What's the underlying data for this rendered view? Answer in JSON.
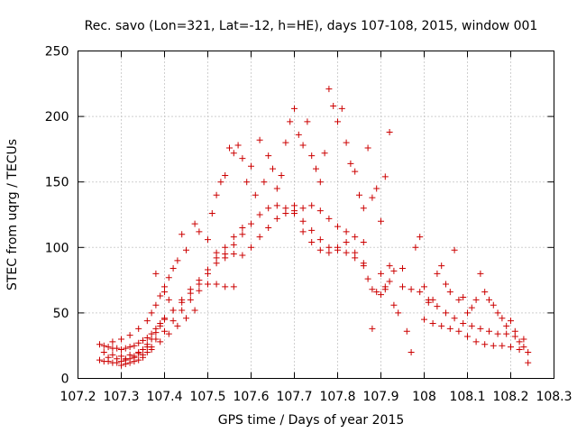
{
  "chart_data": {
    "type": "scatter",
    "title": "Rec. savo (Lon=321, Lat=-12, h=HE), days 107-108, 2015, window 001",
    "xlabel": "GPS time / Days of year 2015",
    "ylabel": "STEC from uqrg / TECUs",
    "xlim": [
      107.2,
      108.3
    ],
    "ylim": [
      0,
      250
    ],
    "x_ticks": [
      107.2,
      107.3,
      107.4,
      107.5,
      107.6,
      107.7,
      107.8,
      107.9,
      108,
      108.1,
      108.2,
      108.3
    ],
    "x_tick_labels": [
      "107.2",
      "107.3",
      "107.4",
      "107.5",
      "107.6",
      "107.7",
      "107.8",
      "107.9",
      "108",
      "108.1",
      "108.2",
      "108.3"
    ],
    "y_ticks": [
      0,
      50,
      100,
      150,
      200,
      250
    ],
    "y_tick_labels": [
      "0",
      "50",
      "100",
      "150",
      "200",
      "250"
    ],
    "grid": true,
    "marker": "plus",
    "color": "#cc0000",
    "series": [
      {
        "points": [
          [
            107.25,
            26
          ],
          [
            107.26,
            25
          ],
          [
            107.27,
            24
          ],
          [
            107.28,
            23
          ],
          [
            107.29,
            23
          ],
          [
            107.3,
            22
          ],
          [
            107.31,
            23
          ],
          [
            107.32,
            24
          ],
          [
            107.33,
            25
          ],
          [
            107.34,
            27
          ],
          [
            107.35,
            29
          ],
          [
            107.36,
            31
          ],
          [
            107.37,
            34
          ],
          [
            107.38,
            38
          ],
          [
            107.39,
            42
          ],
          [
            107.4,
            46
          ],
          [
            107.42,
            52
          ],
          [
            107.44,
            58
          ],
          [
            107.46,
            65
          ],
          [
            107.48,
            72
          ],
          [
            107.5,
            80
          ],
          [
            107.52,
            88
          ],
          [
            107.54,
            95
          ],
          [
            107.56,
            102
          ],
          [
            107.58,
            110
          ],
          [
            107.6,
            118
          ],
          [
            107.62,
            125
          ],
          [
            107.64,
            130
          ],
          [
            107.66,
            132
          ],
          [
            107.68,
            130
          ],
          [
            107.7,
            126
          ],
          [
            107.72,
            120
          ],
          [
            107.74,
            113
          ],
          [
            107.76,
            106
          ],
          [
            107.78,
            100
          ],
          [
            107.8,
            98
          ],
          [
            107.82,
            96
          ],
          [
            107.84,
            92
          ],
          [
            107.86,
            88
          ],
          [
            107.25,
            14
          ],
          [
            107.26,
            13
          ],
          [
            107.27,
            13
          ],
          [
            107.28,
            12
          ],
          [
            107.29,
            12
          ],
          [
            107.3,
            13
          ],
          [
            107.31,
            14
          ],
          [
            107.32,
            15
          ],
          [
            107.33,
            17
          ],
          [
            107.34,
            19
          ],
          [
            107.35,
            22
          ],
          [
            107.36,
            26
          ],
          [
            107.37,
            30
          ],
          [
            107.38,
            35
          ],
          [
            107.39,
            40
          ],
          [
            107.4,
            45
          ],
          [
            107.42,
            52
          ],
          [
            107.44,
            60
          ],
          [
            107.46,
            68
          ],
          [
            107.48,
            75
          ],
          [
            107.5,
            83
          ],
          [
            107.52,
            92
          ],
          [
            107.54,
            100
          ],
          [
            107.56,
            108
          ],
          [
            107.58,
            115
          ],
          [
            107.26,
            20
          ],
          [
            107.28,
            18
          ],
          [
            107.3,
            17
          ],
          [
            107.32,
            18
          ],
          [
            107.34,
            20
          ],
          [
            107.36,
            24
          ],
          [
            107.38,
            30
          ],
          [
            107.4,
            36
          ],
          [
            107.42,
            44
          ],
          [
            107.44,
            52
          ],
          [
            107.46,
            60
          ],
          [
            107.48,
            67
          ],
          [
            107.5,
            72
          ],
          [
            107.52,
            72
          ],
          [
            107.54,
            70
          ],
          [
            107.56,
            70
          ],
          [
            107.27,
            16
          ],
          [
            107.29,
            15
          ],
          [
            107.31,
            15
          ],
          [
            107.33,
            16
          ],
          [
            107.35,
            18
          ],
          [
            107.37,
            22
          ],
          [
            107.39,
            28
          ],
          [
            107.41,
            34
          ],
          [
            107.43,
            40
          ],
          [
            107.45,
            46
          ],
          [
            107.47,
            52
          ],
          [
            107.3,
            10
          ],
          [
            107.31,
            11
          ],
          [
            107.32,
            12
          ],
          [
            107.33,
            13
          ],
          [
            107.34,
            14
          ],
          [
            107.35,
            16
          ],
          [
            107.36,
            20
          ],
          [
            107.37,
            24
          ],
          [
            107.28,
            28
          ],
          [
            107.3,
            30
          ],
          [
            107.32,
            33
          ],
          [
            107.34,
            38
          ],
          [
            107.36,
            44
          ],
          [
            107.37,
            50
          ],
          [
            107.38,
            56
          ],
          [
            107.39,
            63
          ],
          [
            107.4,
            70
          ],
          [
            107.41,
            77
          ],
          [
            107.42,
            84
          ],
          [
            107.38,
            80
          ],
          [
            107.4,
            66
          ],
          [
            107.41,
            60
          ],
          [
            107.43,
            90
          ],
          [
            107.44,
            110
          ],
          [
            107.45,
            98
          ],
          [
            107.47,
            118
          ],
          [
            107.48,
            112
          ],
          [
            107.5,
            106
          ],
          [
            107.51,
            126
          ],
          [
            107.52,
            140
          ],
          [
            107.53,
            150
          ],
          [
            107.54,
            155
          ],
          [
            107.55,
            176
          ],
          [
            107.56,
            172
          ],
          [
            107.57,
            178
          ],
          [
            107.58,
            168
          ],
          [
            107.59,
            150
          ],
          [
            107.6,
            162
          ],
          [
            107.61,
            140
          ],
          [
            107.62,
            182
          ],
          [
            107.63,
            150
          ],
          [
            107.64,
            170
          ],
          [
            107.65,
            160
          ],
          [
            107.66,
            145
          ],
          [
            107.67,
            155
          ],
          [
            107.68,
            180
          ],
          [
            107.69,
            196
          ],
          [
            107.7,
            206
          ],
          [
            107.71,
            186
          ],
          [
            107.72,
            178
          ],
          [
            107.73,
            196
          ],
          [
            107.74,
            170
          ],
          [
            107.75,
            160
          ],
          [
            107.76,
            150
          ],
          [
            107.77,
            172
          ],
          [
            107.78,
            221
          ],
          [
            107.79,
            208
          ],
          [
            107.8,
            196
          ],
          [
            107.81,
            206
          ],
          [
            107.82,
            180
          ],
          [
            107.83,
            164
          ],
          [
            107.84,
            158
          ],
          [
            107.85,
            140
          ],
          [
            107.86,
            130
          ],
          [
            107.87,
            176
          ],
          [
            107.88,
            138
          ],
          [
            107.89,
            145
          ],
          [
            107.9,
            120
          ],
          [
            107.91,
            154
          ],
          [
            107.92,
            188
          ],
          [
            107.52,
            96
          ],
          [
            107.54,
            92
          ],
          [
            107.56,
            95
          ],
          [
            107.58,
            94
          ],
          [
            107.6,
            100
          ],
          [
            107.62,
            108
          ],
          [
            107.64,
            115
          ],
          [
            107.66,
            122
          ],
          [
            107.68,
            126
          ],
          [
            107.7,
            128
          ],
          [
            107.72,
            130
          ],
          [
            107.74,
            132
          ],
          [
            107.76,
            128
          ],
          [
            107.78,
            122
          ],
          [
            107.8,
            116
          ],
          [
            107.82,
            112
          ],
          [
            107.84,
            108
          ],
          [
            107.86,
            104
          ],
          [
            107.7,
            132
          ],
          [
            107.72,
            112
          ],
          [
            107.74,
            104
          ],
          [
            107.76,
            98
          ],
          [
            107.78,
            96
          ],
          [
            107.8,
            100
          ],
          [
            107.82,
            104
          ],
          [
            107.84,
            96
          ],
          [
            107.86,
            86
          ],
          [
            107.87,
            76
          ],
          [
            107.88,
            68
          ],
          [
            107.89,
            66
          ],
          [
            107.9,
            64
          ],
          [
            107.91,
            68
          ],
          [
            107.92,
            74
          ],
          [
            107.93,
            82
          ],
          [
            107.88,
            38
          ],
          [
            107.9,
            80
          ],
          [
            107.91,
            70
          ],
          [
            107.92,
            86
          ],
          [
            107.93,
            56
          ],
          [
            107.94,
            50
          ],
          [
            107.95,
            84
          ],
          [
            107.96,
            36
          ],
          [
            107.97,
            20
          ],
          [
            107.98,
            100
          ],
          [
            107.99,
            108
          ],
          [
            108.0,
            70
          ],
          [
            108.01,
            58
          ],
          [
            108.02,
            60
          ],
          [
            108.03,
            80
          ],
          [
            108.04,
            86
          ],
          [
            108.05,
            72
          ],
          [
            108.06,
            66
          ],
          [
            108.07,
            98
          ],
          [
            108.08,
            60
          ],
          [
            108.09,
            62
          ],
          [
            108.1,
            50
          ],
          [
            108.11,
            54
          ],
          [
            108.12,
            60
          ],
          [
            108.13,
            80
          ],
          [
            108.14,
            66
          ],
          [
            108.15,
            60
          ],
          [
            108.16,
            56
          ],
          [
            108.17,
            50
          ],
          [
            108.18,
            46
          ],
          [
            108.19,
            40
          ],
          [
            108.2,
            44
          ],
          [
            108.21,
            36
          ],
          [
            108.22,
            28
          ],
          [
            108.23,
            24
          ],
          [
            108.24,
            12
          ],
          [
            107.95,
            70
          ],
          [
            107.97,
            68
          ],
          [
            107.99,
            66
          ],
          [
            108.01,
            60
          ],
          [
            108.03,
            55
          ],
          [
            108.05,
            50
          ],
          [
            108.07,
            46
          ],
          [
            108.09,
            42
          ],
          [
            108.11,
            40
          ],
          [
            108.13,
            38
          ],
          [
            108.15,
            36
          ],
          [
            108.17,
            34
          ],
          [
            108.19,
            34
          ],
          [
            108.21,
            32
          ],
          [
            108.23,
            30
          ],
          [
            108.0,
            45
          ],
          [
            108.02,
            42
          ],
          [
            108.04,
            40
          ],
          [
            108.06,
            38
          ],
          [
            108.08,
            36
          ],
          [
            108.1,
            32
          ],
          [
            108.12,
            28
          ],
          [
            108.14,
            26
          ],
          [
            108.16,
            25
          ],
          [
            108.18,
            25
          ],
          [
            108.2,
            24
          ],
          [
            108.22,
            22
          ],
          [
            108.24,
            20
          ]
        ]
      }
    ]
  }
}
